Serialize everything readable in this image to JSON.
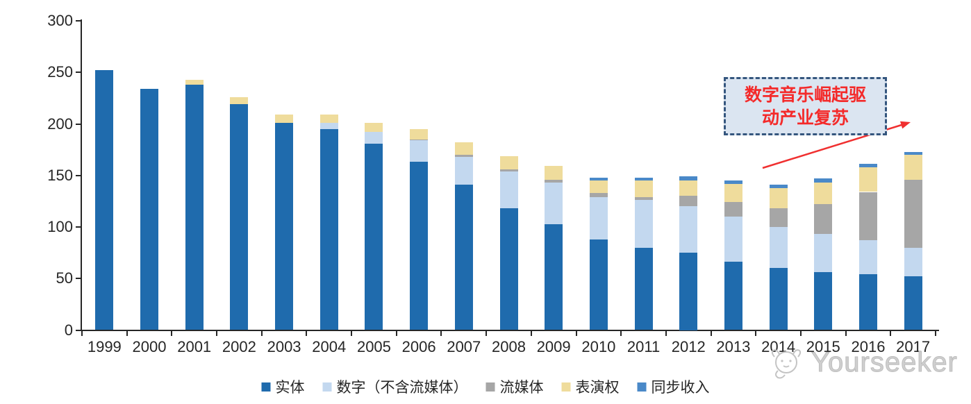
{
  "chart_data": {
    "type": "bar",
    "stacked": true,
    "title": "",
    "xlabel": "",
    "ylabel": "",
    "ylim": [
      0,
      300
    ],
    "ytick_step": 50,
    "grid": false,
    "legend_position": "bottom",
    "categories": [
      "1999",
      "2000",
      "2001",
      "2002",
      "2003",
      "2004",
      "2005",
      "2006",
      "2007",
      "2008",
      "2009",
      "2010",
      "2011",
      "2012",
      "2013",
      "2014",
      "2015",
      "2016",
      "2017"
    ],
    "series": [
      {
        "name": "实体",
        "color": "#1F6BAD",
        "values": [
          252,
          234,
          238,
          219,
          201,
          195,
          181,
          163,
          141,
          118,
          103,
          88,
          80,
          75,
          66,
          60,
          56,
          54,
          52
        ]
      },
      {
        "name": "数字（不含流媒体）",
        "color": "#C3D8EF",
        "values": [
          0,
          0,
          0,
          0,
          0,
          6,
          11,
          21,
          27,
          36,
          40,
          41,
          46,
          45,
          44,
          40,
          37,
          33,
          28
        ]
      },
      {
        "name": "流媒体",
        "color": "#A6A6A6",
        "values": [
          0,
          0,
          0,
          0,
          0,
          0,
          0,
          1,
          2,
          2,
          3,
          4,
          3,
          10,
          14,
          18,
          29,
          47,
          66
        ]
      },
      {
        "name": "表演权",
        "color": "#EFDC9C",
        "values": [
          0,
          0,
          5,
          7,
          8,
          8,
          9,
          10,
          12,
          13,
          13,
          12,
          16,
          15,
          18,
          20,
          21,
          24,
          24
        ]
      },
      {
        "name": "同步收入",
        "color": "#4A89C8",
        "values": [
          0,
          0,
          0,
          0,
          0,
          0,
          0,
          0,
          0,
          0,
          0,
          3,
          3,
          4,
          3,
          3,
          4,
          3,
          3
        ]
      }
    ],
    "ytick_labels": [
      "0",
      "50",
      "100",
      "150",
      "200",
      "250",
      "300"
    ]
  },
  "annotation": {
    "lines": [
      "数字音乐崛起驱",
      "动产业复苏"
    ],
    "text": "数字音乐崛起驱动产业复苏",
    "text_color": "#F42A2A",
    "box_fill": "#DBE5F1",
    "box_border": "#35567E",
    "arrow_color": "#F03030"
  },
  "watermark": {
    "text": "Yourseeker",
    "icon": "cat-logo-icon",
    "color": "#CFCFCF"
  },
  "axis": {
    "color": "#262626"
  }
}
